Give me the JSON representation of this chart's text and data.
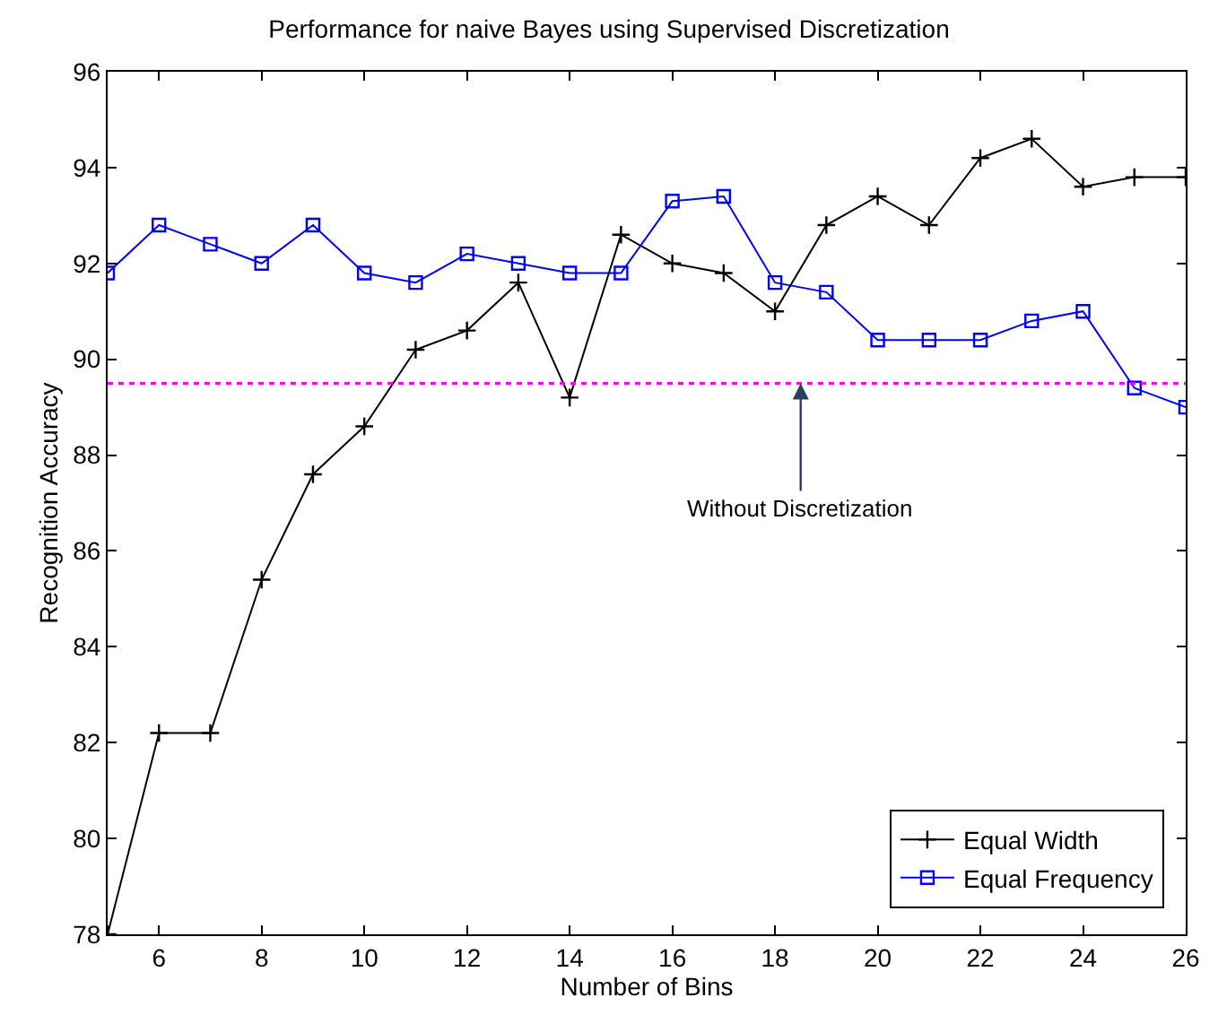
{
  "chart_data": {
    "type": "line",
    "title": "Performance for naive Bayes using Supervised Discretization",
    "xlabel": "Number of Bins",
    "ylabel": "Recognition Accuracy",
    "x": [
      5,
      6,
      7,
      8,
      9,
      10,
      11,
      12,
      13,
      14,
      15,
      16,
      17,
      18,
      19,
      20,
      21,
      22,
      23,
      24,
      25,
      26
    ],
    "series": [
      {
        "name": "Equal Width",
        "color": "#000000",
        "marker": "cross",
        "values": [
          78.0,
          82.2,
          82.2,
          85.4,
          87.6,
          88.6,
          90.2,
          90.6,
          91.6,
          89.2,
          92.6,
          92.0,
          91.8,
          91.0,
          92.8,
          93.4,
          92.8,
          94.2,
          94.6,
          93.6,
          93.8,
          93.8
        ]
      },
      {
        "name": "Equal Frequency",
        "color": "#0000ff",
        "marker": "square",
        "values": [
          91.8,
          92.8,
          92.4,
          92.0,
          92.8,
          91.8,
          91.6,
          92.2,
          92.0,
          91.8,
          91.8,
          93.3,
          93.4,
          91.6,
          91.4,
          90.4,
          90.4,
          90.4,
          90.8,
          91.0,
          89.4,
          89.0
        ]
      }
    ],
    "xlim": [
      5,
      26
    ],
    "xticks": [
      6,
      8,
      10,
      12,
      14,
      16,
      18,
      20,
      22,
      24,
      26
    ],
    "ylim": [
      78,
      96
    ],
    "yticks": [
      78,
      80,
      82,
      84,
      86,
      88,
      90,
      92,
      94,
      96
    ],
    "ref_lines": [
      {
        "axis": "y",
        "value": 89.5,
        "color": "#ff00ff",
        "line_style": "dotted"
      }
    ],
    "annotations": [
      {
        "text": "Without Discretization",
        "x": 18.5,
        "y": 89.5
      }
    ],
    "legend": "bottom right",
    "line_style": "solid"
  }
}
